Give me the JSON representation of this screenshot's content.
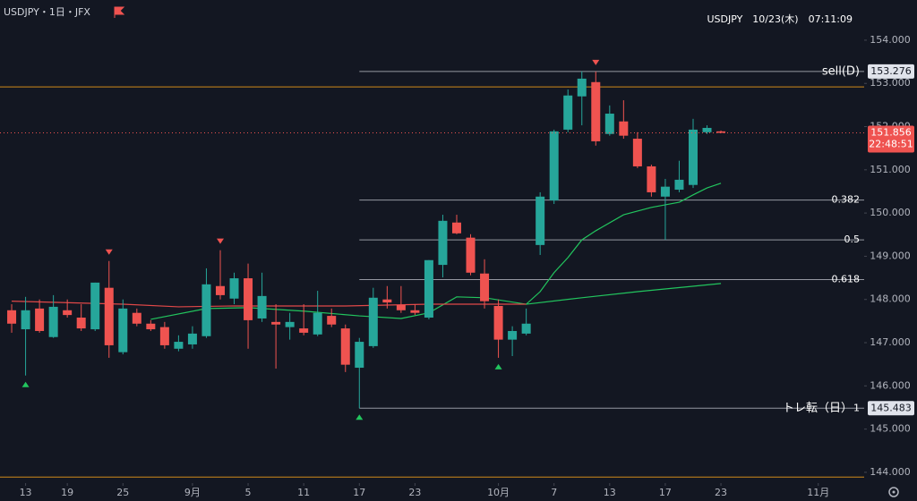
{
  "header": {
    "symbol_line": "USDJPY・1日・JFX",
    "clock": "USDJPY　10/23(木)　07:11:09"
  },
  "chart_data": {
    "type": "candlestick",
    "up_color": "#26a69a",
    "down_color": "#ef5350",
    "ohlc": [
      [
        147.75,
        147.89,
        147.23,
        147.44
      ],
      [
        147.31,
        148.06,
        146.24,
        147.75
      ],
      [
        147.79,
        148.0,
        147.23,
        147.27
      ],
      [
        147.13,
        148.1,
        147.11,
        147.83
      ],
      [
        147.75,
        148.0,
        147.58,
        147.64
      ],
      [
        147.58,
        147.89,
        147.27,
        147.33
      ],
      [
        147.31,
        148.39,
        147.27,
        148.39
      ],
      [
        148.27,
        148.89,
        146.65,
        146.94
      ],
      [
        146.78,
        148.0,
        146.73,
        147.79
      ],
      [
        147.69,
        147.79,
        147.38,
        147.44
      ],
      [
        147.44,
        147.52,
        147.27,
        147.31
      ],
      [
        147.36,
        147.48,
        146.86,
        146.94
      ],
      [
        146.86,
        147.17,
        146.8,
        147.02
      ],
      [
        146.96,
        147.38,
        146.86,
        147.21
      ],
      [
        147.15,
        148.72,
        147.11,
        148.35
      ],
      [
        148.31,
        149.14,
        148.0,
        148.1
      ],
      [
        148.02,
        148.62,
        147.89,
        148.49
      ],
      [
        148.49,
        148.83,
        146.86,
        147.52
      ],
      [
        147.56,
        148.62,
        147.48,
        148.08
      ],
      [
        147.48,
        147.89,
        146.4,
        147.42
      ],
      [
        147.36,
        147.69,
        147.07,
        147.48
      ],
      [
        147.33,
        147.89,
        147.17,
        147.23
      ],
      [
        147.19,
        148.2,
        147.15,
        147.69
      ],
      [
        147.62,
        147.79,
        147.36,
        147.42
      ],
      [
        147.33,
        147.42,
        146.32,
        146.49
      ],
      [
        146.42,
        147.11,
        145.483,
        147.02
      ],
      [
        146.92,
        148.27,
        146.88,
        148.04
      ],
      [
        148.0,
        148.31,
        147.79,
        147.93
      ],
      [
        147.87,
        148.31,
        147.69,
        147.75
      ],
      [
        147.75,
        147.89,
        147.64,
        147.69
      ],
      [
        147.58,
        148.91,
        147.54,
        148.91
      ],
      [
        148.8,
        149.96,
        148.51,
        149.82
      ],
      [
        149.78,
        149.96,
        149.51,
        149.53
      ],
      [
        149.43,
        149.51,
        148.56,
        148.62
      ],
      [
        148.6,
        148.93,
        147.79,
        147.96
      ],
      [
        147.85,
        148.0,
        146.65,
        147.07
      ],
      [
        147.07,
        147.38,
        146.69,
        147.27
      ],
      [
        147.21,
        147.79,
        147.17,
        147.44
      ],
      [
        149.26,
        150.48,
        149.03,
        150.38
      ],
      [
        150.29,
        151.93,
        150.21,
        151.89
      ],
      [
        151.93,
        152.86,
        151.87,
        152.72
      ],
      [
        152.7,
        153.28,
        152.03,
        153.11
      ],
      [
        153.03,
        153.276,
        151.56,
        151.66
      ],
      [
        151.83,
        152.49,
        151.79,
        152.3
      ],
      [
        152.12,
        152.61,
        151.72,
        151.79
      ],
      [
        151.72,
        151.87,
        151.04,
        151.08
      ],
      [
        151.08,
        151.12,
        150.38,
        150.48
      ],
      [
        150.38,
        150.79,
        149.38,
        150.61
      ],
      [
        150.54,
        151.21,
        150.48,
        150.77
      ],
      [
        150.65,
        152.18,
        150.58,
        151.93
      ],
      [
        151.87,
        152.03,
        151.83,
        151.97
      ],
      [
        151.89,
        151.91,
        151.85,
        151.856
      ]
    ],
    "xlim": [
      -0.84,
      61.3
    ],
    "ylim": [
      143.75,
      154.93
    ],
    "yticks": [
      {
        "value": 144,
        "label": "144.000"
      },
      {
        "value": 145,
        "label": "145.000"
      },
      {
        "value": 146,
        "label": "146.000"
      },
      {
        "value": 147,
        "label": "147.000"
      },
      {
        "value": 148,
        "label": "148.000"
      },
      {
        "value": 149,
        "label": "149.000"
      },
      {
        "value": 150,
        "label": "150.000"
      },
      {
        "value": 151,
        "label": "151.000"
      },
      {
        "value": 152,
        "label": "152.000"
      },
      {
        "value": 153,
        "label": "153.000"
      },
      {
        "value": 154,
        "label": "154.000"
      }
    ],
    "xticks": [
      {
        "value": 1,
        "label": "13"
      },
      {
        "value": 4,
        "label": "19"
      },
      {
        "value": 8,
        "label": "25"
      },
      {
        "value": 13,
        "label": "9月"
      },
      {
        "value": 17,
        "label": "5"
      },
      {
        "value": 21,
        "label": "11"
      },
      {
        "value": 25,
        "label": "17"
      },
      {
        "value": 29,
        "label": "23"
      },
      {
        "value": 35,
        "label": "10月"
      },
      {
        "value": 39,
        "label": "7"
      },
      {
        "value": 43,
        "label": "13"
      },
      {
        "value": 47,
        "label": "17"
      },
      {
        "value": 51,
        "label": "23"
      },
      {
        "value": 58,
        "label": "11月"
      }
    ],
    "series": [
      {
        "color": "#22c55e",
        "x": [
          10,
          14,
          17,
          21,
          25,
          28,
          30,
          32,
          34,
          37,
          38,
          39,
          40,
          41,
          42,
          44,
          46,
          48,
          49,
          50,
          51
        ],
        "values": [
          147.54,
          147.79,
          147.81,
          147.73,
          147.62,
          147.56,
          147.69,
          148.06,
          148.04,
          147.89,
          148.18,
          148.62,
          148.97,
          149.38,
          149.59,
          149.96,
          150.13,
          150.25,
          150.42,
          150.58,
          150.69
        ]
      },
      {
        "color": "#e04848",
        "x": [
          0,
          8,
          12,
          16,
          24,
          30,
          37
        ],
        "values": [
          147.96,
          147.89,
          147.83,
          147.85,
          147.85,
          147.89,
          147.89
        ]
      },
      {
        "color": "#22c55e",
        "x": [
          37,
          41,
          45,
          51
        ],
        "values": [
          147.89,
          148.04,
          148.18,
          148.37
        ]
      }
    ],
    "levels": [
      {
        "label": "sell(D)",
        "value": 153.276,
        "axis_label": true
      },
      {
        "label": "0.382",
        "value": 150.3
      },
      {
        "label": "0.5",
        "value": 149.38
      },
      {
        "label": "0.618",
        "value": 148.46
      },
      {
        "label": "1",
        "note": "トレ転（日）",
        "value": 145.483,
        "axis_label": true
      }
    ],
    "level_start": 25,
    "horizontal_lines": [
      {
        "value": 152.92,
        "color": "#d08a1a"
      },
      {
        "value": 143.89,
        "color": "#d08a1a"
      }
    ],
    "last_price": {
      "value": 151.856,
      "countdown": "22:48:51",
      "color": "#ef5350"
    },
    "signals": {
      "sell": [
        7,
        15,
        42
      ],
      "buy": [
        1,
        25,
        35
      ]
    }
  }
}
